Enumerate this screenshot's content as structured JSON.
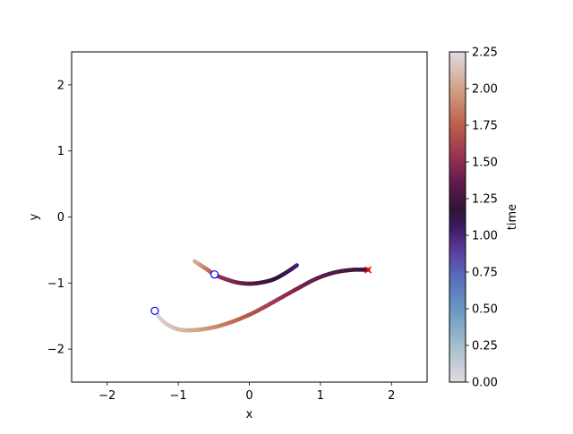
{
  "chart_data": {
    "type": "line",
    "title": "",
    "xlabel": "x",
    "ylabel": "y",
    "xlim": [
      -2.5,
      2.5
    ],
    "ylim": [
      -2.5,
      2.5
    ],
    "xticks": [
      -2,
      -1,
      0,
      1,
      2
    ],
    "xtick_labels": [
      "−2",
      "−1",
      "0",
      "1",
      "2"
    ],
    "yticks": [
      -2,
      -1,
      0,
      1,
      2
    ],
    "ytick_labels": [
      "−2",
      "−1",
      "0",
      "1",
      "2"
    ],
    "grid": false,
    "colormap": "twilight",
    "colorbar": {
      "label": "time",
      "range": [
        0,
        2.25
      ],
      "ticks": [
        0,
        0.25,
        0.5,
        0.75,
        1.0,
        1.25,
        1.5,
        1.75,
        2.0,
        2.25
      ],
      "tick_labels": [
        "0.00",
        "0.25",
        "0.50",
        "0.75",
        "1.00",
        "1.25",
        "1.50",
        "1.75",
        "2.00",
        "2.25"
      ]
    },
    "series": [
      {
        "points": [
          {
            "x": 0.67,
            "y": -0.73,
            "t": 1.0
          },
          {
            "x": 0.52,
            "y": -0.84,
            "t": 1.08
          },
          {
            "x": 0.35,
            "y": -0.94,
            "t": 1.16
          },
          {
            "x": 0.18,
            "y": -0.99,
            "t": 1.24
          },
          {
            "x": 0.0,
            "y": -1.01,
            "t": 1.32
          },
          {
            "x": -0.18,
            "y": -0.99,
            "t": 1.4
          },
          {
            "x": -0.36,
            "y": -0.93,
            "t": 1.48
          },
          {
            "x": -0.49,
            "y": -0.87,
            "t": 1.56
          },
          {
            "x": -0.6,
            "y": -0.79,
            "t": 1.8
          },
          {
            "x": -0.7,
            "y": -0.72,
            "t": 1.95
          },
          {
            "x": -0.77,
            "y": -0.67,
            "t": 2.05
          }
        ],
        "marker": {
          "x": -0.49,
          "y": -0.87,
          "shape": "circle",
          "color": "#0000ff"
        }
      },
      {
        "points": [
          {
            "x": 1.67,
            "y": -0.8,
            "t": 1.2
          },
          {
            "x": 1.45,
            "y": -0.8,
            "t": 1.25
          },
          {
            "x": 1.2,
            "y": -0.84,
            "t": 1.3
          },
          {
            "x": 0.95,
            "y": -0.93,
            "t": 1.36
          },
          {
            "x": 0.7,
            "y": -1.07,
            "t": 1.42
          },
          {
            "x": 0.45,
            "y": -1.22,
            "t": 1.52
          },
          {
            "x": 0.2,
            "y": -1.37,
            "t": 1.62
          },
          {
            "x": 0.0,
            "y": -1.48,
            "t": 1.7
          },
          {
            "x": -0.25,
            "y": -1.59,
            "t": 1.8
          },
          {
            "x": -0.5,
            "y": -1.67,
            "t": 1.9
          },
          {
            "x": -0.75,
            "y": -1.71,
            "t": 2.0
          },
          {
            "x": -0.95,
            "y": -1.71,
            "t": 2.08
          },
          {
            "x": -1.12,
            "y": -1.65,
            "t": 2.14
          },
          {
            "x": -1.25,
            "y": -1.54,
            "t": 2.2
          },
          {
            "x": -1.33,
            "y": -1.42,
            "t": 2.25
          }
        ],
        "marker": {
          "x": -1.33,
          "y": -1.42,
          "shape": "circle",
          "color": "#0000ff"
        }
      }
    ],
    "annotations": [
      {
        "x": 1.67,
        "y": -0.8,
        "shape": "x",
        "color": "#ff0000"
      }
    ]
  }
}
